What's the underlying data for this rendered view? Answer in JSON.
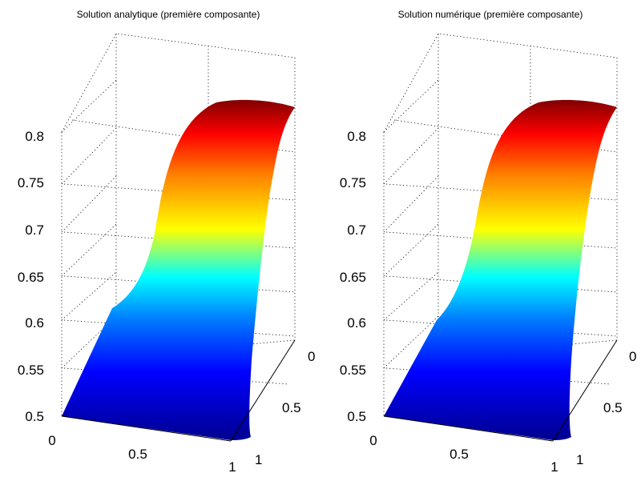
{
  "chart_data": [
    {
      "type": "surface",
      "title": "Solution analytique (première composante)",
      "zlim": [
        0.5,
        0.82
      ],
      "z_ticks": [
        "0.5",
        "0.55",
        "0.6",
        "0.65",
        "0.7",
        "0.75",
        "0.8"
      ],
      "x_ticks": [
        "0",
        "0.5",
        "1"
      ],
      "y_ticks": [
        "0",
        "0.5",
        "1"
      ],
      "grid": true,
      "colormap": "jet"
    },
    {
      "type": "surface",
      "title": "Solution numérique (première composante)",
      "zlim": [
        0.5,
        0.82
      ],
      "z_ticks": [
        "0.5",
        "0.55",
        "0.6",
        "0.65",
        "0.7",
        "0.75",
        "0.8"
      ],
      "x_ticks": [
        "0",
        "0.5",
        "1"
      ],
      "y_ticks": [
        "0",
        "0.5",
        "1"
      ],
      "grid": true,
      "colormap": "jet"
    }
  ]
}
